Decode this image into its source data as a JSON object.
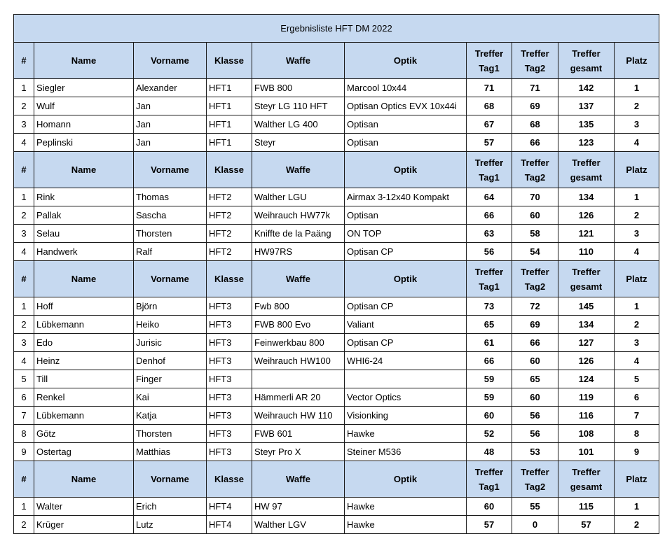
{
  "title": "Ergebnisliste HFT DM 2022",
  "header": {
    "num": "#",
    "name": "Name",
    "vorname": "Vorname",
    "klasse": "Klasse",
    "waffe": "Waffe",
    "optik": "Optik",
    "tag1_a": "Treffer",
    "tag1_b": "Tag1",
    "tag2_a": "Treffer",
    "tag2_b": "Tag2",
    "gesamt_a": "Treffer",
    "gesamt_b": "gesamt",
    "platz": "Platz"
  },
  "colors": {
    "header_bg": "#c6d9f0",
    "border": "#1a1a1a"
  },
  "groups": [
    {
      "rows": [
        {
          "num": "1",
          "name": "Siegler",
          "vorname": "Alexander",
          "klasse": "HFT1",
          "waffe": "FWB 800",
          "optik": "Marcool 10x44",
          "tag1": "71",
          "tag2": "71",
          "gesamt": "142",
          "platz": "1"
        },
        {
          "num": "2",
          "name": "Wulf",
          "vorname": "Jan",
          "klasse": "HFT1",
          "waffe": "Steyr LG 110 HFT",
          "optik": "Optisan Optics EVX 10x44i",
          "tag1": "68",
          "tag2": "69",
          "gesamt": "137",
          "platz": "2"
        },
        {
          "num": "3",
          "name": "Homann",
          "vorname": "Jan",
          "klasse": "HFT1",
          "waffe": "Walther LG 400",
          "optik": "Optisan",
          "tag1": "67",
          "tag2": "68",
          "gesamt": "135",
          "platz": "3"
        },
        {
          "num": "4",
          "name": "Peplinski",
          "vorname": "Jan",
          "klasse": "HFT1",
          "waffe": "Steyr",
          "optik": "Optisan",
          "tag1": "57",
          "tag2": "66",
          "gesamt": "123",
          "platz": "4"
        }
      ]
    },
    {
      "rows": [
        {
          "num": "1",
          "name": "Rink",
          "vorname": "Thomas",
          "klasse": "HFT2",
          "waffe": "Walther LGU",
          "optik": "Airmax 3-12x40 Kompakt",
          "tag1": "64",
          "tag2": "70",
          "gesamt": "134",
          "platz": "1"
        },
        {
          "num": "2",
          "name": "Pallak",
          "vorname": "Sascha",
          "klasse": "HFT2",
          "waffe": "Weihrauch HW77k",
          "optik": "Optisan",
          "tag1": "66",
          "tag2": "60",
          "gesamt": "126",
          "platz": "2"
        },
        {
          "num": "3",
          "name": "Selau",
          "vorname": "Thorsten",
          "klasse": "HFT2",
          "waffe": "Kniffte de la Paäng",
          "optik": "ON TOP",
          "tag1": "63",
          "tag2": "58",
          "gesamt": "121",
          "platz": "3"
        },
        {
          "num": "4",
          "name": "Handwerk",
          "vorname": "Ralf",
          "klasse": "HFT2",
          "waffe": "HW97RS",
          "optik": "Optisan CP",
          "tag1": "56",
          "tag2": "54",
          "gesamt": "110",
          "platz": "4"
        }
      ]
    },
    {
      "rows": [
        {
          "num": "1",
          "name": "Hoff",
          "vorname": "Björn",
          "klasse": "HFT3",
          "waffe": "Fwb 800",
          "optik": "Optisan CP",
          "tag1": "73",
          "tag2": "72",
          "gesamt": "145",
          "platz": "1"
        },
        {
          "num": "2",
          "name": "Lübkemann",
          "vorname": "Heiko",
          "klasse": "HFT3",
          "waffe": "FWB 800 Evo",
          "optik": "Valiant",
          "tag1": "65",
          "tag2": "69",
          "gesamt": "134",
          "platz": "2"
        },
        {
          "num": "3",
          "name": "Edo",
          "vorname": "Jurisic",
          "klasse": "HFT3",
          "waffe": "Feinwerkbau 800",
          "optik": "Optisan CP",
          "tag1": "61",
          "tag2": "66",
          "gesamt": "127",
          "platz": "3"
        },
        {
          "num": "4",
          "name": "Heinz",
          "vorname": "Denhof",
          "klasse": "HFT3",
          "waffe": "Weihrauch HW100",
          "optik": "WHI6-24",
          "tag1": "66",
          "tag2": "60",
          "gesamt": "126",
          "platz": "4"
        },
        {
          "num": "5",
          "name": "Till",
          "vorname": "Finger",
          "klasse": "HFT3",
          "waffe": "",
          "optik": "",
          "tag1": "59",
          "tag2": "65",
          "gesamt": "124",
          "platz": "5"
        },
        {
          "num": "6",
          "name": "Renkel",
          "vorname": "Kai",
          "klasse": "HFT3",
          "waffe": "Hämmerli AR 20",
          "optik": "Vector Optics",
          "tag1": "59",
          "tag2": "60",
          "gesamt": "119",
          "platz": "6"
        },
        {
          "num": "7",
          "name": "Lübkemann",
          "vorname": "Katja",
          "klasse": "HFT3",
          "waffe": "Weihrauch HW 110",
          "optik": "Visionking",
          "tag1": "60",
          "tag2": "56",
          "gesamt": "116",
          "platz": "7"
        },
        {
          "num": "8",
          "name": "Götz",
          "vorname": "Thorsten",
          "klasse": "HFT3",
          "waffe": "FWB 601",
          "optik": "Hawke",
          "tag1": "52",
          "tag2": "56",
          "gesamt": "108",
          "platz": "8"
        },
        {
          "num": "9",
          "name": "Ostertag",
          "vorname": "Matthias",
          "klasse": "HFT3",
          "waffe": "Steyr Pro X",
          "optik": "Steiner M536",
          "tag1": "48",
          "tag2": "53",
          "gesamt": "101",
          "platz": "9"
        }
      ]
    },
    {
      "rows": [
        {
          "num": "1",
          "name": "Walter",
          "vorname": "Erich",
          "klasse": "HFT4",
          "waffe": "HW 97",
          "optik": "Hawke",
          "tag1": "60",
          "tag2": "55",
          "gesamt": "115",
          "platz": "1"
        },
        {
          "num": "2",
          "name": "Krüger",
          "vorname": "Lutz",
          "klasse": "HFT4",
          "waffe": "Walther LGV",
          "optik": "Hawke",
          "tag1": "57",
          "tag2": "0",
          "gesamt": "57",
          "platz": "2"
        }
      ]
    }
  ]
}
